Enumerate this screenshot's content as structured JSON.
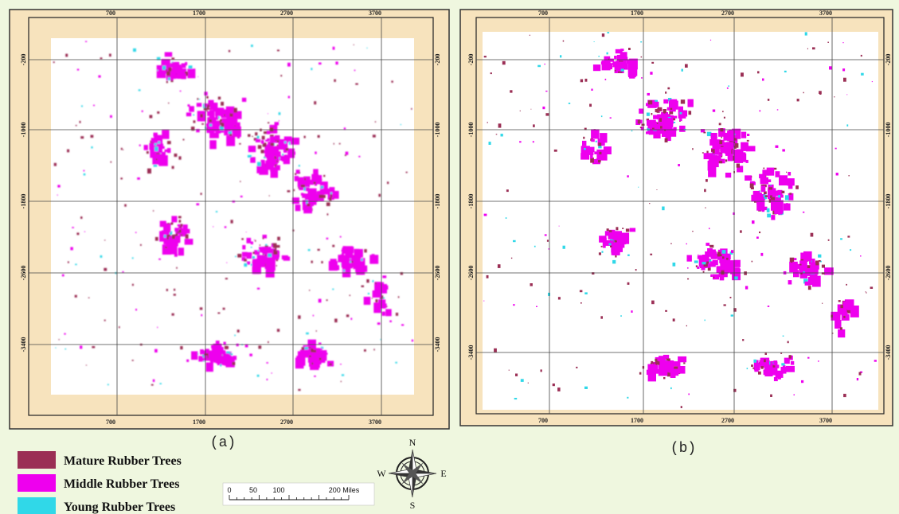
{
  "panels": [
    {
      "caption": "(a)",
      "x_labels": [
        700,
        1700,
        2700,
        3700
      ],
      "y_labels": [
        -200,
        -1000,
        -1800,
        -2600,
        -3400
      ]
    },
    {
      "caption": "(b)",
      "x_labels": [
        700,
        1700,
        2700,
        3700
      ],
      "y_labels": [
        -200,
        -1000,
        -1800,
        -2600,
        -3400
      ]
    }
  ],
  "legend": [
    {
      "name": "Mature Rubber Trees",
      "color": "#9b2f55"
    },
    {
      "name": "Middle Rubber Trees",
      "color": "#ee00ee"
    },
    {
      "name": "Young Rubber Trees",
      "color": "#30d8e8"
    }
  ],
  "scale_bar": {
    "labels": [
      "0",
      "50",
      "100",
      "200 Miles"
    ]
  },
  "compass": {
    "n": "N",
    "s": "S",
    "e": "E",
    "w": "W"
  }
}
